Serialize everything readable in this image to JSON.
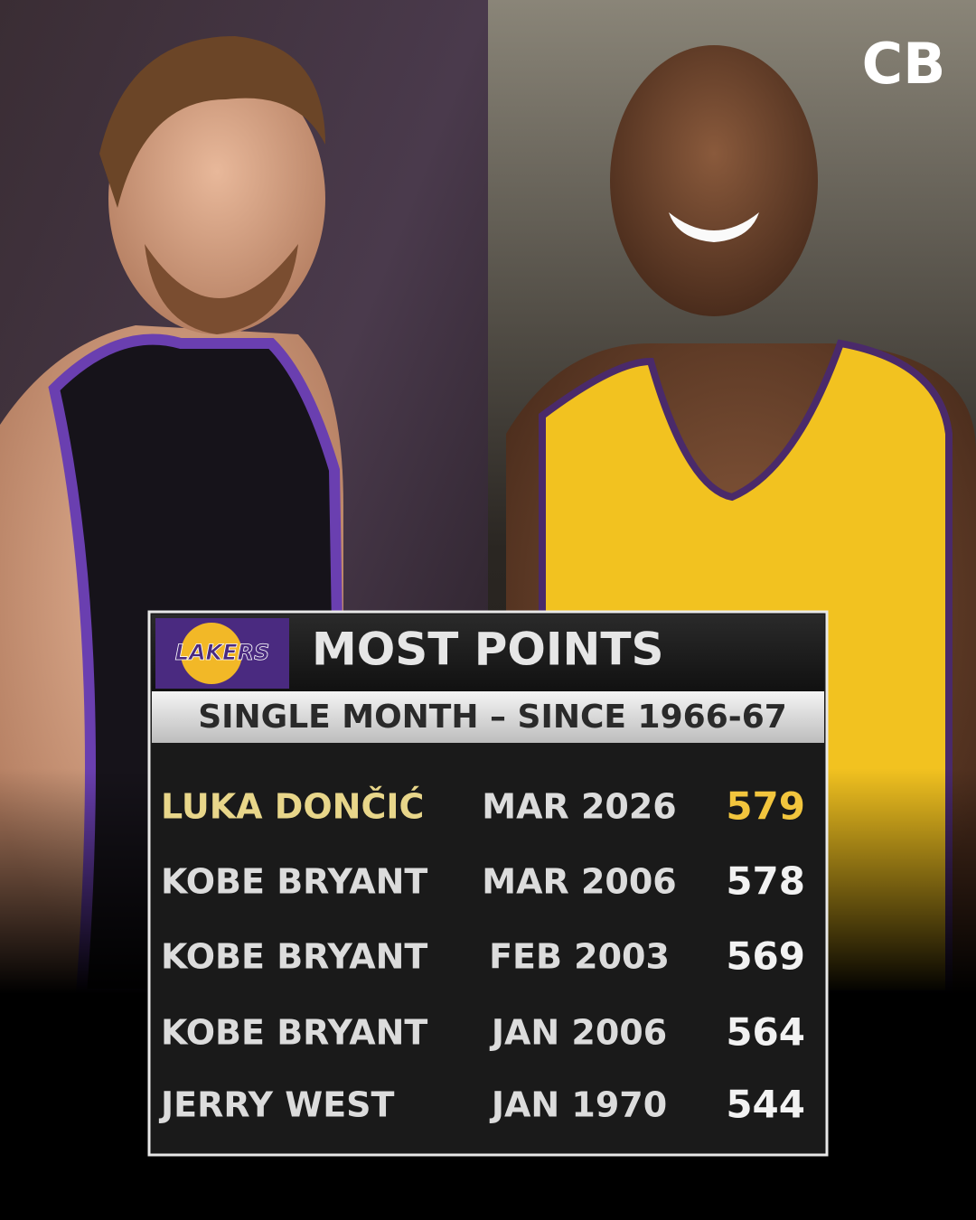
{
  "brand": "CB",
  "table": {
    "logo_text": "LAKERS",
    "title": "MOST POINTS",
    "subtitle": "SINGLE MONTH – SINCE 1966-67",
    "rows": [
      [
        "LUKA DONČIĆ",
        "MAR 2026",
        579
      ],
      [
        "KOBE BRYANT",
        "MAR 2006",
        578
      ],
      [
        "KOBE BRYANT",
        "FEB 2003",
        569
      ],
      [
        "KOBE BRYANT",
        "JAN 2006",
        564
      ],
      [
        "JERRY WEST",
        "JAN 1970",
        544
      ]
    ]
  }
}
